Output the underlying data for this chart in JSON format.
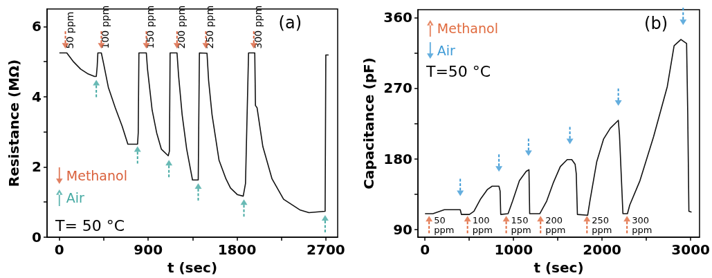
{
  "chart_data": [
    {
      "type": "line",
      "xlabel": "t (sec)",
      "ylabel": "Resistance (MΩ)",
      "xlim": [
        -125,
        2820
      ],
      "ylim": [
        0,
        6.5
      ],
      "xticks": [
        0,
        {
          "value": 450,
          "label": null
        },
        900,
        {
          "value": 1350,
          "label": null
        },
        1800,
        {
          "value": 2250,
          "label": null
        },
        2700
      ],
      "yticks": [
        0,
        {
          "value": 1,
          "label": null
        },
        2,
        {
          "value": 3,
          "label": null
        },
        4,
        {
          "value": 5,
          "label": null
        },
        6
      ],
      "legend": "bottom left",
      "annotations": [
        "T= 50 °C",
        "(a)",
        {
          "text": "50 ppm",
          "x": 61,
          "y": 5.25
        },
        {
          "text": "100 ppm",
          "x": 425,
          "y": 5.25
        },
        {
          "text": "150 ppm",
          "x": 881,
          "y": 5.25
        },
        {
          "text": "200 ppm",
          "x": 1192,
          "y": 5.25
        },
        {
          "text": "250 ppm",
          "x": 1484,
          "y": 5.25
        },
        {
          "text": "300 ppm",
          "x": 1970,
          "y": 5.25
        }
      ],
      "series": [
        {
          "type": "line",
          "color": "#111111",
          "x": [
            0,
            75,
            145,
            215,
            285,
            355,
            374,
            383,
            390,
            425,
            449,
            496,
            566,
            636,
            694,
            776,
            792,
            799,
            806,
            881,
            893,
            940,
            986,
            1033,
            1103,
            1115,
            1122,
            1192,
            1208,
            1244,
            1290,
            1349,
            1407,
            1419,
            1496,
            1512,
            1547,
            1618,
            1688,
            1734,
            1805,
            1863,
            1886,
            1917,
            1980,
            1987,
            2003,
            2062,
            2155,
            2272,
            2436,
            2529,
            2693,
            2700,
            2728
          ],
          "values": [
            5.25,
            5.25,
            4.99,
            4.79,
            4.66,
            4.58,
            4.58,
            4.86,
            5.25,
            5.25,
            4.93,
            4.27,
            3.69,
            3.16,
            2.65,
            2.65,
            2.65,
            2.97,
            5.25,
            5.25,
            4.79,
            3.62,
            2.97,
            2.51,
            2.32,
            2.45,
            5.25,
            5.25,
            4.6,
            3.49,
            2.51,
            1.63,
            1.63,
            5.25,
            5.24,
            4.47,
            3.49,
            2.19,
            1.66,
            1.4,
            1.21,
            1.17,
            1.53,
            5.25,
            5.25,
            3.75,
            3.69,
            2.58,
            1.66,
            1.08,
            0.78,
            0.7,
            0.74,
            5.19,
            5.19
          ]
        },
        {
          "type": "scatter",
          "name": "Methanol",
          "color": "#d9603b",
          "x": [
            61,
            425,
            881,
            1192,
            1484,
            1970
          ],
          "values": [
            5.45,
            5.45,
            5.45,
            5.45,
            5.45,
            5.45
          ]
        },
        {
          "type": "scatter",
          "name": "Air",
          "color": "#44a9a2",
          "x": [
            374,
            792,
            1110,
            1407,
            1870,
            2693
          ],
          "values": [
            4.4,
            2.51,
            2.12,
            1.46,
            1.0,
            0.55
          ]
        }
      ]
    },
    {
      "type": "line",
      "xlabel": "t (sec)",
      "ylabel": "Capacitance (pF)",
      "xlim": [
        -80,
        3100
      ],
      "ylim": [
        80,
        370
      ],
      "xticks": [
        0,
        {
          "value": 500,
          "label": null
        },
        1000,
        {
          "value": 1500,
          "label": null
        },
        2000,
        {
          "value": 2500,
          "label": null
        },
        3000
      ],
      "yticks": [
        90,
        {
          "value": 135,
          "label": null
        },
        180,
        {
          "value": 225,
          "label": null
        },
        270,
        {
          "value": 315,
          "label": null
        },
        360
      ],
      "legend": "top left",
      "annotations": [
        "T=50 °C",
        "(b)",
        {
          "text": "50 ppm",
          "x": 46,
          "y": 110
        },
        {
          "text": "100 ppm",
          "x": 480,
          "y": 110
        },
        {
          "text": "150 ppm",
          "x": 917,
          "y": 110
        },
        {
          "text": "200 ppm",
          "x": 1305,
          "y": 110
        },
        {
          "text": "250 ppm",
          "x": 1829,
          "y": 110
        },
        {
          "text": "300 ppm",
          "x": 2281,
          "y": 110
        }
      ],
      "series": [
        {
          "type": "line",
          "color": "#111111",
          "x": [
            0,
            90,
            218,
            321,
            398,
            411,
            501,
            552,
            629,
            706,
            758,
            835,
            848,
            855,
            938,
            989,
            1066,
            1143,
            1174,
            1182,
            1297,
            1374,
            1451,
            1528,
            1606,
            1657,
            1695,
            1708,
            1721,
            1837,
            1862,
            1939,
            2016,
            2093,
            2183,
            2196,
            2235,
            2286,
            2312,
            2427,
            2581,
            2736,
            2813,
            2890,
            2954,
            2967,
            2980,
            3010
          ],
          "values": [
            110,
            110,
            115,
            115,
            115,
            109,
            109,
            113,
            129,
            141,
            145,
            145,
            139,
            109,
            110,
            126,
            152,
            164,
            166,
            110,
            110,
            126,
            150,
            170,
            179,
            179,
            173,
            161,
            109,
            108,
            126,
            176,
            205,
            219,
            229,
            211,
            110,
            110,
            121,
            152,
            208,
            272,
            324,
            332,
            327,
            237,
            113,
            112
          ]
        },
        {
          "type": "scatter",
          "name": "Methanol",
          "color": "#e06a3e",
          "x": [
            46,
            480,
            917,
            1305,
            1829,
            2281
          ],
          "values": [
            103.5,
            103.5,
            103.5,
            103.5,
            103.5,
            103.5
          ]
        },
        {
          "type": "scatter",
          "name": "Air",
          "color": "#3d9ad6",
          "x": [
            398,
            835,
            1169,
            1636,
            2183,
            2915
          ],
          "values": [
            136,
            167,
            187,
            202,
            251,
            354
          ]
        }
      ]
    }
  ]
}
